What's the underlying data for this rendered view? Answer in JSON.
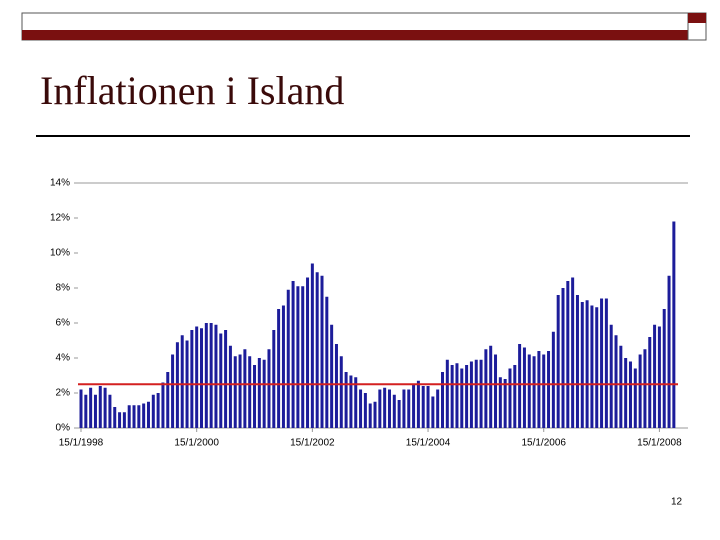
{
  "slide_title": "Inflationen i Island",
  "page_number": "12",
  "chart_data": {
    "type": "bar",
    "color": "#1c1c9a",
    "categories": [
      "15/1/1998",
      null,
      null,
      null,
      null,
      null,
      null,
      null,
      null,
      null,
      null,
      null,
      null,
      null,
      null,
      null,
      null,
      null,
      null,
      null,
      null,
      null,
      null,
      null,
      "15/1/2000",
      null,
      null,
      null,
      null,
      null,
      null,
      null,
      null,
      null,
      null,
      null,
      null,
      null,
      null,
      null,
      null,
      null,
      null,
      null,
      null,
      null,
      null,
      null,
      "15/1/2002",
      null,
      null,
      null,
      null,
      null,
      null,
      null,
      null,
      null,
      null,
      null,
      null,
      null,
      null,
      null,
      null,
      null,
      null,
      null,
      null,
      null,
      null,
      null,
      "15/1/2004",
      null,
      null,
      null,
      null,
      null,
      null,
      null,
      null,
      null,
      null,
      null,
      null,
      null,
      null,
      null,
      null,
      null,
      null,
      null,
      null,
      null,
      null,
      null,
      "15/1/2006",
      null,
      null,
      null,
      null,
      null,
      null,
      null,
      null,
      null,
      null,
      null,
      null,
      null,
      null,
      null,
      null,
      null,
      null,
      null,
      null,
      null,
      null,
      null,
      "15/1/2008",
      null,
      null,
      null
    ],
    "values": [
      2.2,
      1.9,
      2.3,
      1.9,
      2.4,
      2.3,
      1.9,
      1.2,
      0.9,
      0.9,
      1.3,
      1.3,
      1.3,
      1.4,
      1.5,
      1.9,
      2.0,
      2.6,
      3.2,
      4.2,
      4.9,
      5.3,
      5.0,
      5.6,
      5.8,
      5.7,
      6.0,
      6.0,
      5.9,
      5.4,
      5.6,
      4.7,
      4.1,
      4.2,
      4.5,
      4.1,
      3.6,
      4.0,
      3.9,
      4.5,
      5.6,
      6.8,
      7.0,
      7.9,
      8.4,
      8.1,
      8.1,
      8.6,
      9.4,
      8.9,
      8.7,
      7.5,
      5.9,
      4.8,
      4.1,
      3.2,
      3.0,
      2.9,
      2.2,
      2.0,
      1.4,
      1.5,
      2.2,
      2.3,
      2.2,
      1.9,
      1.6,
      2.2,
      2.2,
      2.5,
      2.7,
      2.4,
      2.4,
      1.8,
      2.2,
      3.2,
      3.9,
      3.6,
      3.7,
      3.4,
      3.6,
      3.8,
      3.9,
      3.9,
      4.5,
      4.7,
      4.2,
      2.9,
      2.8,
      3.4,
      3.6,
      4.8,
      4.6,
      4.2,
      4.1,
      4.4,
      4.2,
      4.4,
      5.5,
      7.6,
      8.0,
      8.4,
      8.6,
      7.6,
      7.2,
      7.3,
      7.0,
      6.9,
      7.4,
      7.4,
      5.9,
      5.3,
      4.7,
      4.0,
      3.8,
      3.4,
      4.2,
      4.5,
      5.2,
      5.9,
      5.8,
      6.8,
      8.7,
      11.8
    ],
    "ylim": [
      0,
      14
    ],
    "yticks": [
      {
        "value": 0,
        "label": "0%"
      },
      {
        "value": 2,
        "label": "2%"
      },
      {
        "value": 4,
        "label": "4%"
      },
      {
        "value": 6,
        "label": "6%"
      },
      {
        "value": 8,
        "label": "8%"
      },
      {
        "value": 10,
        "label": "10%"
      },
      {
        "value": 12,
        "label": "12%"
      },
      {
        "value": 14,
        "label": "14%"
      }
    ],
    "reference_line": 2.5,
    "reference_color": "#d42020"
  }
}
